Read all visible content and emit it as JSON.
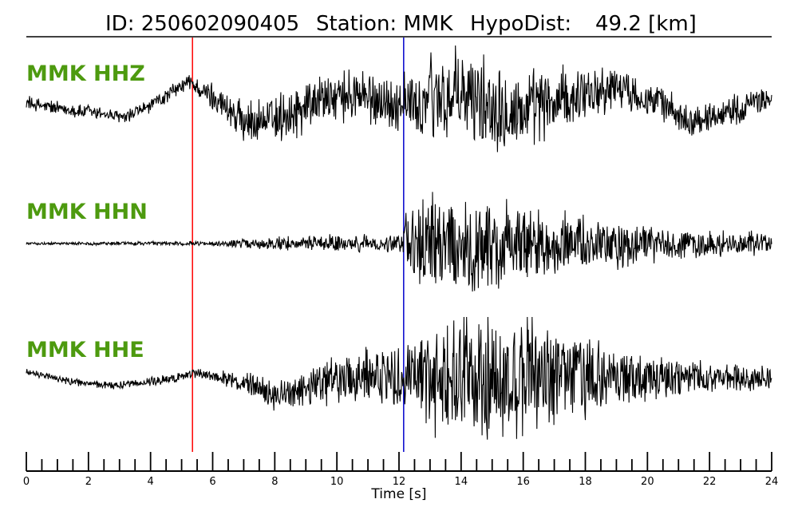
{
  "header": {
    "id_label": "ID: 250602090405",
    "station_label": "Station: MMK",
    "hypodist_label": "HypoDist:",
    "hypodist_value": "49.2 [km]"
  },
  "colors": {
    "label": "#4d9a0f",
    "p_pick": "#ff0000",
    "s_pick": "#0000cc",
    "trace": "#000000"
  },
  "chart_data": {
    "type": "line",
    "xlabel": "Time [s]",
    "xlim": [
      0,
      24
    ],
    "x_major_ticks": [
      "0",
      "2",
      "4",
      "6",
      "8",
      "10",
      "12",
      "14",
      "16",
      "18",
      "20",
      "22",
      "24"
    ],
    "x_minor_tick_step": 0.5,
    "picks": [
      {
        "time": 5.35,
        "color": "#ff0000"
      },
      {
        "time": 12.15,
        "color": "#0000cc"
      }
    ],
    "series": [
      {
        "name": "MMK HHZ",
        "envelope": [
          [
            0,
            0.12
          ],
          [
            5,
            0.12
          ],
          [
            6,
            0.25
          ],
          [
            8,
            0.42
          ],
          [
            11.5,
            0.45
          ],
          [
            12.2,
            0.55
          ],
          [
            13,
            0.78
          ],
          [
            15,
            0.85
          ],
          [
            16.5,
            0.62
          ],
          [
            18,
            0.45
          ],
          [
            21,
            0.28
          ],
          [
            24,
            0.22
          ]
        ],
        "trend": [
          [
            0,
            0.0
          ],
          [
            1,
            -0.12
          ],
          [
            2.5,
            -0.2
          ],
          [
            3.2,
            -0.28
          ],
          [
            4.5,
            0.1
          ],
          [
            5.2,
            0.35
          ],
          [
            6,
            0.1
          ],
          [
            7,
            -0.35
          ],
          [
            8,
            -0.3
          ],
          [
            9.5,
            0.05
          ],
          [
            10.5,
            0.1
          ],
          [
            12,
            -0.05
          ],
          [
            13.5,
            0.1
          ],
          [
            16,
            -0.15
          ],
          [
            17.5,
            0.05
          ],
          [
            19,
            0.3
          ],
          [
            20.5,
            -0.05
          ],
          [
            21.5,
            -0.35
          ],
          [
            23,
            -0.1
          ],
          [
            24,
            0.1
          ]
        ]
      },
      {
        "name": "MMK HHN",
        "envelope": [
          [
            0,
            0.02
          ],
          [
            6,
            0.04
          ],
          [
            8,
            0.12
          ],
          [
            10,
            0.14
          ],
          [
            12,
            0.14
          ],
          [
            12.3,
            0.65
          ],
          [
            13.5,
            0.9
          ],
          [
            15.5,
            0.75
          ],
          [
            17,
            0.55
          ],
          [
            20,
            0.32
          ],
          [
            24,
            0.18
          ]
        ],
        "trend": [
          [
            0,
            0.0
          ],
          [
            24,
            0.0
          ]
        ]
      },
      {
        "name": "MMK HHE",
        "envelope": [
          [
            0,
            0.05
          ],
          [
            6,
            0.08
          ],
          [
            8,
            0.25
          ],
          [
            10.5,
            0.42
          ],
          [
            12.2,
            0.55
          ],
          [
            13,
            0.9
          ],
          [
            15,
            1.0
          ],
          [
            16.5,
            0.9
          ],
          [
            18,
            0.6
          ],
          [
            20,
            0.35
          ],
          [
            24,
            0.18
          ]
        ],
        "trend": [
          [
            0,
            0.12
          ],
          [
            1.5,
            -0.05
          ],
          [
            3,
            -0.1
          ],
          [
            4.5,
            0.0
          ],
          [
            5.5,
            0.1
          ],
          [
            7,
            -0.05
          ],
          [
            8,
            -0.3
          ],
          [
            9.5,
            -0.05
          ],
          [
            11,
            0.05
          ],
          [
            24,
            0.0
          ]
        ]
      }
    ]
  }
}
